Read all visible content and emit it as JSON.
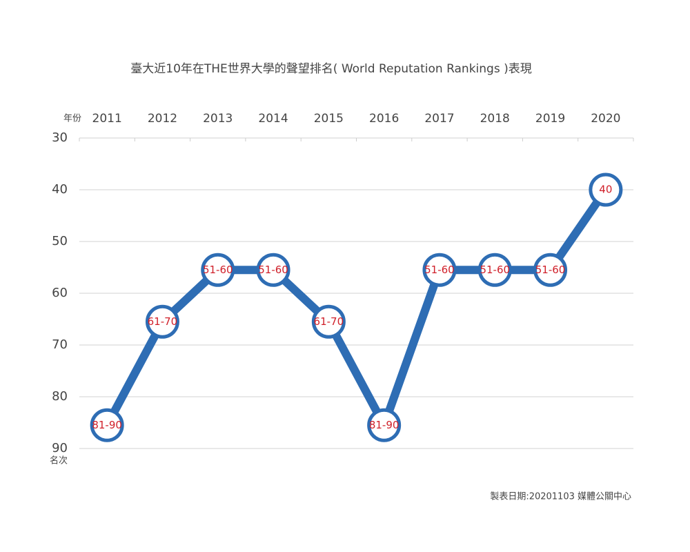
{
  "chart_data": {
    "type": "line",
    "title": "臺大近10年在THE世界大學的聲望排名( World Reputation Rankings )表現",
    "x_label": "年份",
    "y_label": "名次",
    "note": "製表日期:20201103 媒體公關中心",
    "categories": [
      "2011",
      "2012",
      "2013",
      "2014",
      "2015",
      "2016",
      "2017",
      "2018",
      "2019",
      "2020"
    ],
    "series": [
      {
        "name": "聲望排名",
        "color": "#2e6db4",
        "values": [
          85.5,
          65.5,
          55.5,
          55.5,
          65.5,
          85.5,
          55.5,
          55.5,
          55.5,
          40
        ],
        "value_labels": [
          "81-90",
          "61-70",
          "51-60",
          "51-60",
          "61-70",
          "81-90",
          "51-60",
          "51-60",
          "51-60",
          "40"
        ]
      }
    ],
    "ylim": [
      30,
      90
    ],
    "yticks": [
      30,
      40,
      50,
      60,
      70,
      80,
      90
    ],
    "y_inverted": true,
    "grid": true,
    "label_color": "#d0202a"
  }
}
